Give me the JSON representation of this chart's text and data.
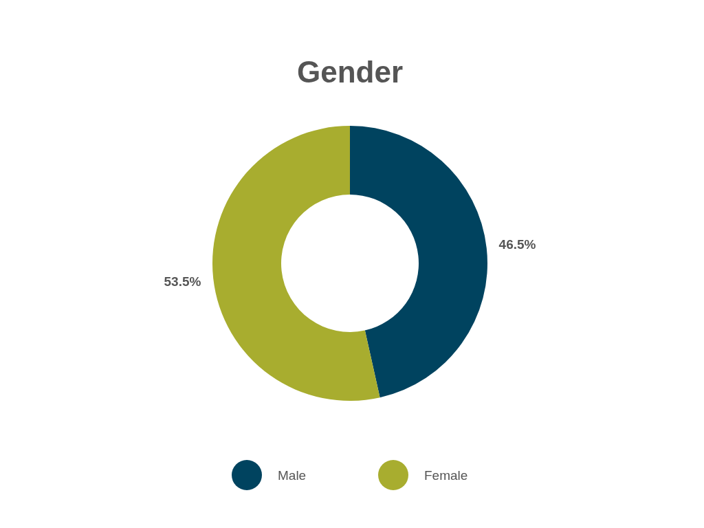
{
  "chart_data": {
    "type": "donut",
    "title": "Gender",
    "categories": [
      "Male",
      "Female"
    ],
    "values": [
      46.5,
      53.5
    ],
    "colors": [
      "#00435f",
      "#a8ad2f"
    ],
    "value_labels": [
      "46.5%",
      "53.5%"
    ],
    "legend": "bottom"
  }
}
